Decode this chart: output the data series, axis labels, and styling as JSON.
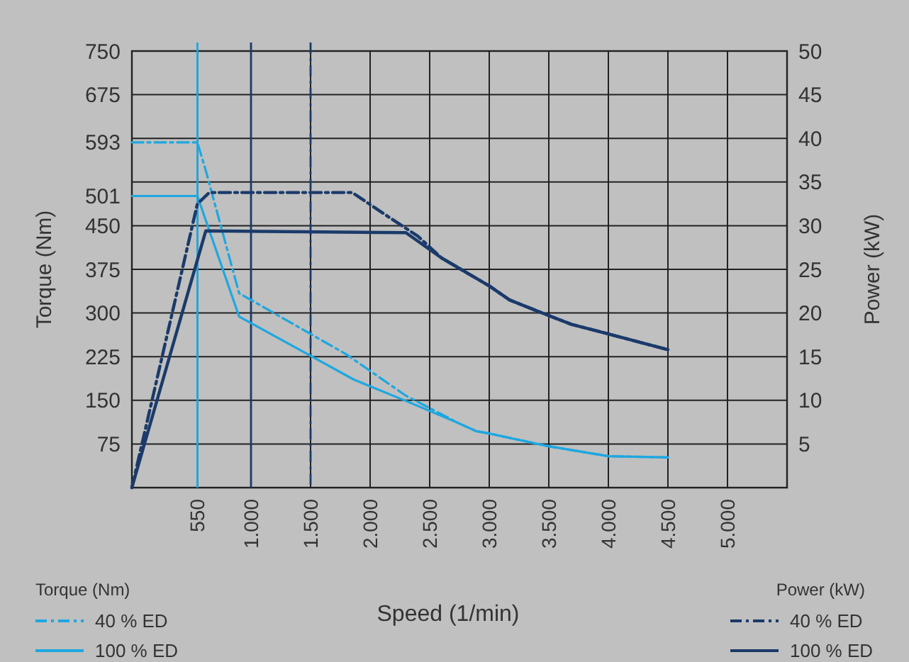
{
  "chart_data": {
    "type": "line",
    "xlabel": "Speed (1/min)",
    "ylabel": "Torque (Nm)",
    "y2label": "Power (kW)",
    "xlim": [
      0,
      5500
    ],
    "xticks": [
      550,
      {
        "value": 1000,
        "label": "1.000"
      },
      {
        "value": 1500,
        "label": "1.500"
      },
      {
        "value": 2000,
        "label": "2.000"
      },
      {
        "value": 2500,
        "label": "2.500"
      },
      {
        "value": 3000,
        "label": "3.000"
      },
      {
        "value": 3500,
        "label": "3.500"
      },
      {
        "value": 4000,
        "label": "4.000"
      },
      {
        "value": 4500,
        "label": "4.500"
      },
      {
        "value": 5000,
        "label": "5.000"
      }
    ],
    "ylim": [
      0,
      750
    ],
    "yticks": [
      75,
      150,
      225,
      300,
      375,
      450,
      501,
      593,
      675,
      750
    ],
    "y2lim": [
      0,
      50
    ],
    "y2ticks": [
      5,
      10,
      15,
      20,
      25,
      30,
      35,
      40,
      45,
      50
    ],
    "grid": true,
    "legend": "bottom",
    "marker": "none",
    "ref_lines": [
      {
        "axis": "x",
        "value": 550,
        "color": "#1ea7e1",
        "line_style": "solid"
      },
      {
        "axis": "x",
        "value": 1000,
        "color": "#1b3a6b",
        "line_style": "solid"
      },
      {
        "axis": "x",
        "value": 1500,
        "color": "#1b3a6b",
        "line_style": "dashed"
      }
    ],
    "series": [
      {
        "name": "40 % ED",
        "axis": "y",
        "color": "#1ea7e1",
        "line_style": "dashed",
        "x": [
          0,
          550,
          620,
          900,
          1800,
          2300,
          2740,
          2890,
          3000,
          3500,
          4000,
          4500
        ],
        "values": [
          593,
          593,
          545,
          334,
          229,
          158,
          111,
          97,
          93,
          71,
          54,
          52
        ]
      },
      {
        "name": "100 % ED",
        "axis": "y",
        "color": "#1ea7e1",
        "line_style": "solid",
        "x": [
          0,
          550,
          900,
          1860,
          2300,
          2740,
          2890,
          3000,
          3500,
          4000,
          4500
        ],
        "values": [
          501,
          501,
          294,
          186,
          149,
          111,
          97,
          93,
          71,
          54,
          52
        ]
      },
      {
        "name": "40 % ED",
        "axis": "y2",
        "color": "#1b3a6b",
        "line_style": "dashed",
        "x": [
          0,
          550,
          650,
          1850,
          2100,
          2400,
          2600,
          3000,
          3170,
          3500,
          3690,
          4000,
          4500
        ],
        "values": [
          0,
          32.5,
          33.8,
          33.8,
          31.5,
          28.8,
          26.3,
          23.1,
          21.5,
          19.7,
          18.7,
          17.6,
          15.8
        ]
      },
      {
        "name": "100 % ED",
        "axis": "y2",
        "color": "#1b3a6b",
        "line_style": "solid",
        "x": [
          0,
          620,
          2300,
          2600,
          3000,
          3170,
          3500,
          3690,
          4000,
          4500
        ],
        "values": [
          0,
          29.4,
          29.2,
          26.3,
          23.1,
          21.5,
          19.7,
          18.7,
          17.6,
          15.8
        ]
      }
    ]
  }
}
